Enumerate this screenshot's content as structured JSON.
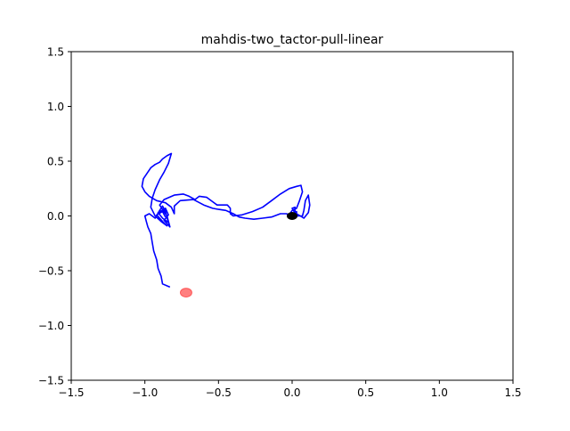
{
  "chart_data": {
    "type": "line",
    "title": "mahdis-two_tactor-pull-linear",
    "xlabel": "",
    "ylabel": "",
    "xlim": [
      -1.5,
      1.5
    ],
    "ylim": [
      -1.5,
      1.5
    ],
    "xticks": [
      -1.5,
      -1.0,
      -0.5,
      0.0,
      0.5,
      1.0,
      1.5
    ],
    "yticks": [
      -1.5,
      -1.0,
      -0.5,
      0.0,
      0.5,
      1.0,
      1.5
    ],
    "xtick_labels": [
      "−1.5",
      "−1.0",
      "−0.5",
      "0.0",
      "0.5",
      "1.0",
      "1.5"
    ],
    "ytick_labels": [
      "−1.5",
      "−1.0",
      "−0.5",
      "0.0",
      "0.5",
      "1.0",
      "1.5"
    ],
    "grid": false,
    "colors": {
      "trajectory": "#0000ff",
      "target": "#ff0000",
      "origin": "#000000"
    },
    "series": [
      {
        "values": [
          [
            -0.83,
            -0.65
          ],
          [
            -0.88,
            -0.62
          ],
          [
            -0.89,
            -0.55
          ],
          [
            -0.91,
            -0.48
          ],
          [
            -0.92,
            -0.4
          ],
          [
            -0.94,
            -0.32
          ],
          [
            -0.95,
            -0.24
          ],
          [
            -0.96,
            -0.16
          ],
          [
            -0.98,
            -0.1
          ],
          [
            -0.99,
            -0.05
          ],
          [
            -1.0,
            0.0
          ],
          [
            -0.97,
            0.02
          ],
          [
            -0.93,
            -0.02
          ],
          [
            -0.9,
            0.05
          ],
          [
            -0.88,
            0.09
          ],
          [
            -0.86,
            0.04
          ],
          [
            -0.84,
            -0.06
          ],
          [
            -0.88,
            -0.02
          ],
          [
            -0.91,
            0.03
          ],
          [
            -0.86,
            0.07
          ],
          [
            -0.84,
            0.01
          ],
          [
            -0.87,
            -0.04
          ],
          [
            -0.83,
            -0.1
          ],
          [
            -0.85,
            0.0
          ],
          [
            -0.9,
            0.1
          ],
          [
            -0.87,
            0.15
          ],
          [
            -0.8,
            0.19
          ],
          [
            -0.74,
            0.2
          ],
          [
            -0.7,
            0.18
          ],
          [
            -0.66,
            0.15
          ],
          [
            -0.63,
            0.18
          ],
          [
            -0.58,
            0.17
          ],
          [
            -0.54,
            0.13
          ],
          [
            -0.51,
            0.1
          ],
          [
            -0.48,
            0.1
          ],
          [
            -0.44,
            0.1
          ],
          [
            -0.42,
            0.07
          ],
          [
            -0.42,
            0.02
          ],
          [
            -0.4,
            0.0
          ],
          [
            -0.34,
            0.01
          ],
          [
            -0.27,
            0.04
          ],
          [
            -0.2,
            0.08
          ],
          [
            -0.14,
            0.14
          ],
          [
            -0.08,
            0.2
          ],
          [
            -0.02,
            0.25
          ],
          [
            0.03,
            0.27
          ],
          [
            0.06,
            0.28
          ],
          [
            0.07,
            0.22
          ],
          [
            0.05,
            0.14
          ],
          [
            0.03,
            0.07
          ],
          [
            0.0,
            0.05
          ],
          [
            -0.01,
            0.03
          ],
          [
            0.03,
            0.02
          ],
          [
            0.08,
            -0.02
          ],
          [
            0.11,
            0.03
          ],
          [
            0.12,
            0.1
          ],
          [
            0.11,
            0.19
          ],
          [
            0.09,
            0.14
          ],
          [
            0.08,
            0.05
          ],
          [
            0.07,
            0.0
          ],
          [
            0.03,
            0.0
          ],
          [
            0.0,
            0.07
          ],
          [
            0.02,
            0.08
          ],
          [
            0.02,
            0.0
          ],
          [
            0.03,
            -0.01
          ],
          [
            0.03,
            0.04
          ],
          [
            -0.01,
            0.01
          ],
          [
            -0.04,
            0.02
          ],
          [
            -0.08,
            0.02
          ],
          [
            -0.14,
            -0.01
          ],
          [
            -0.2,
            -0.02
          ],
          [
            -0.26,
            -0.03
          ],
          [
            -0.32,
            -0.02
          ],
          [
            -0.36,
            -0.01
          ],
          [
            -0.4,
            0.02
          ],
          [
            -0.45,
            0.05
          ],
          [
            -0.5,
            0.06
          ],
          [
            -0.54,
            0.07
          ],
          [
            -0.6,
            0.1
          ],
          [
            -0.67,
            0.15
          ],
          [
            -0.76,
            0.14
          ],
          [
            -0.8,
            0.09
          ],
          [
            -0.8,
            0.02
          ],
          [
            -0.82,
            0.08
          ],
          [
            -0.86,
            0.12
          ],
          [
            -0.92,
            0.14
          ],
          [
            -0.97,
            0.18
          ],
          [
            -1.0,
            0.22
          ],
          [
            -1.02,
            0.27
          ],
          [
            -1.01,
            0.34
          ],
          [
            -0.98,
            0.4
          ],
          [
            -0.96,
            0.44
          ],
          [
            -0.93,
            0.47
          ],
          [
            -0.9,
            0.49
          ],
          [
            -0.88,
            0.52
          ],
          [
            -0.85,
            0.55
          ],
          [
            -0.82,
            0.57
          ],
          [
            -0.84,
            0.48
          ],
          [
            -0.87,
            0.4
          ],
          [
            -0.9,
            0.33
          ],
          [
            -0.93,
            0.24
          ],
          [
            -0.95,
            0.16
          ],
          [
            -0.96,
            0.08
          ],
          [
            -0.93,
            0.0
          ],
          [
            -0.89,
            -0.05
          ],
          [
            -0.85,
            -0.09
          ],
          [
            -0.88,
            -0.05
          ],
          [
            -0.92,
            0.01
          ],
          [
            -0.88,
            0.04
          ],
          [
            -0.86,
            -0.01
          ]
        ]
      }
    ],
    "markers": {
      "target": {
        "x": -0.72,
        "y": -0.7
      },
      "origin": {
        "x": 0.0,
        "y": 0.0
      }
    }
  }
}
